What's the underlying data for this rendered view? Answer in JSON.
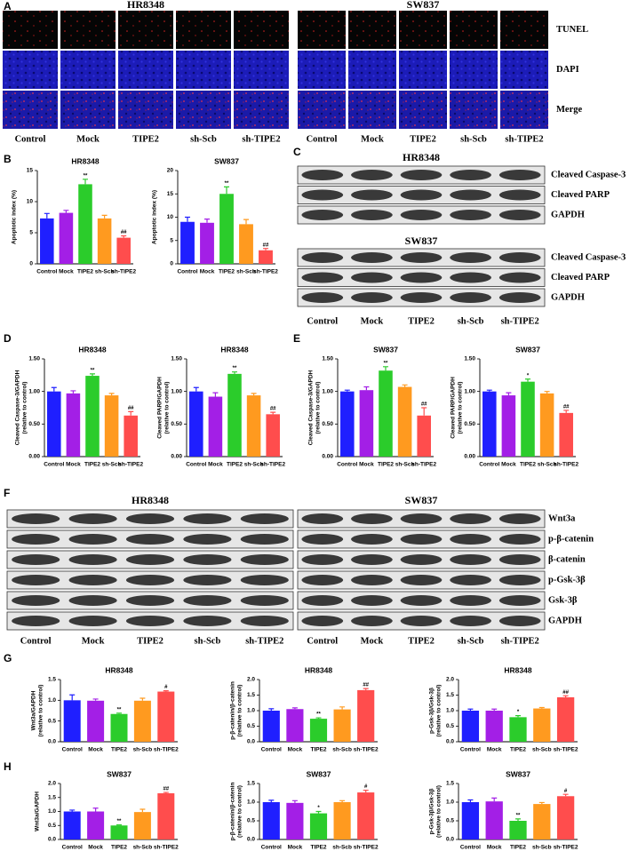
{
  "figure": {
    "panel_labels": [
      "A",
      "B",
      "C",
      "D",
      "E",
      "F",
      "G",
      "H"
    ],
    "microscopy": {
      "groups": [
        {
          "title": "HR8348",
          "columns": [
            "Control",
            "Mock",
            "TIPE2",
            "sh-Scb",
            "sh-TIPE2"
          ]
        },
        {
          "title": "SW837",
          "columns": [
            "Control",
            "Mock",
            "TIPE2",
            "sh-Scb",
            "sh-TIPE2"
          ]
        }
      ],
      "rows": [
        "TUNEL",
        "DAPI",
        "Merge"
      ]
    },
    "blot_c": {
      "groups": [
        {
          "title": "HR8348",
          "rows": [
            "Cleaved Caspase-3",
            "Cleaved PARP",
            "GAPDH"
          ]
        },
        {
          "title": "SW837",
          "rows": [
            "Cleaved Caspase-3",
            "Cleaved PARP",
            "GAPDH"
          ]
        }
      ],
      "columns": [
        "Control",
        "Mock",
        "TIPE2",
        "sh-Scb",
        "sh-TIPE2"
      ]
    },
    "blot_f": {
      "groups": [
        {
          "title": "HR8348",
          "columns": [
            "Control",
            "Mock",
            "TIPE2",
            "sh-Scb",
            "sh-TIPE2"
          ]
        },
        {
          "title": "SW837",
          "columns": [
            "Control",
            "Mock",
            "TIPE2",
            "sh-Scb",
            "sh-TIPE2"
          ]
        }
      ],
      "rows": [
        "Wnt3a",
        "p-β-catenin",
        "β-catenin",
        "p-Gsk-3β",
        "Gsk-3β",
        "GAPDH"
      ]
    }
  },
  "chart_data": [
    {
      "type": "bar",
      "title": "HR8348",
      "ylabel": [
        "Apoptotic index (%)"
      ],
      "categories": [
        "Control",
        "Mock",
        "TIPE2",
        "sh-Scb",
        "sh-TIPE2"
      ],
      "values": [
        7.3,
        8.2,
        12.8,
        7.3,
        4.2
      ],
      "errors": [
        0.8,
        0.4,
        0.8,
        0.5,
        0.3
      ],
      "annotations": [
        null,
        null,
        "**",
        null,
        "##"
      ],
      "colors": [
        "#1f1fff",
        "#a31fe6",
        "#2bcc2b",
        "#ff9a1f",
        "#ff4d4d"
      ],
      "ylim": [
        0,
        15
      ],
      "yticks": [
        0,
        5,
        10,
        15
      ]
    },
    {
      "type": "bar",
      "title": "SW837",
      "ylabel": [
        "Apoptotic index (%)"
      ],
      "categories": [
        "Control",
        "Mock",
        "TIPE2",
        "sh-Scb",
        "sh-TIPE2"
      ],
      "values": [
        9,
        8.8,
        15,
        8.5,
        2.9
      ],
      "errors": [
        1,
        0.8,
        1.5,
        1,
        0.4
      ],
      "annotations": [
        null,
        null,
        "**",
        null,
        "##"
      ],
      "colors": [
        "#1f1fff",
        "#a31fe6",
        "#2bcc2b",
        "#ff9a1f",
        "#ff4d4d"
      ],
      "ylim": [
        0,
        20
      ],
      "yticks": [
        0,
        5,
        10,
        15,
        20
      ]
    },
    {
      "type": "bar",
      "title": "HR8348",
      "ylabel": [
        "Cleaved Caspase-3/GAPDH",
        "(relative to control)"
      ],
      "categories": [
        "Control",
        "Mock",
        "TIPE2",
        "sh-Scb",
        "sh-TIPE2"
      ],
      "values": [
        1.0,
        0.97,
        1.24,
        0.94,
        0.63
      ],
      "errors": [
        0.06,
        0.04,
        0.03,
        0.03,
        0.06
      ],
      "annotations": [
        null,
        null,
        "**",
        null,
        "##"
      ],
      "colors": [
        "#1f1fff",
        "#a31fe6",
        "#2bcc2b",
        "#ff9a1f",
        "#ff4d4d"
      ],
      "ylim": [
        0,
        1.5
      ],
      "yticks": [
        {
          "value": 0,
          "label": "0.00"
        },
        {
          "value": 0.5,
          "label": "0.50"
        },
        {
          "value": 1,
          "label": "1.00"
        },
        {
          "value": 1.5,
          "label": "1.50"
        }
      ]
    },
    {
      "type": "bar",
      "title": "HR8348",
      "ylabel": [
        "Cleaved PARP/GAPDH",
        "(relative to control)"
      ],
      "categories": [
        "Control",
        "Mock",
        "TIPE2",
        "sh-Scb",
        "sh-TIPE2"
      ],
      "values": [
        1.0,
        0.92,
        1.27,
        0.94,
        0.65
      ],
      "errors": [
        0.06,
        0.06,
        0.03,
        0.03,
        0.03
      ],
      "annotations": [
        null,
        null,
        "**",
        null,
        "##"
      ],
      "colors": [
        "#1f1fff",
        "#a31fe6",
        "#2bcc2b",
        "#ff9a1f",
        "#ff4d4d"
      ],
      "ylim": [
        0,
        1.5
      ],
      "yticks": [
        {
          "value": 0,
          "label": "0.00"
        },
        {
          "value": 0.5,
          "label": "0.50"
        },
        {
          "value": 1,
          "label": "1.00"
        },
        {
          "value": 1.5,
          "label": "1.50"
        }
      ]
    },
    {
      "type": "bar",
      "title": "SW837",
      "ylabel": [
        "Cleaved Caspase-3/GAPDH",
        "(relative to control)"
      ],
      "categories": [
        "Control",
        "Mock",
        "TIPE2",
        "sh-Scb",
        "sh-TIPE2"
      ],
      "values": [
        1.0,
        1.02,
        1.32,
        1.07,
        0.63
      ],
      "errors": [
        0.02,
        0.05,
        0.06,
        0.03,
        0.12
      ],
      "annotations": [
        null,
        null,
        "**",
        null,
        "##"
      ],
      "colors": [
        "#1f1fff",
        "#a31fe6",
        "#2bcc2b",
        "#ff9a1f",
        "#ff4d4d"
      ],
      "ylim": [
        0,
        1.5
      ],
      "yticks": [
        {
          "value": 0,
          "label": "0.00"
        },
        {
          "value": 0.5,
          "label": "0.50"
        },
        {
          "value": 1,
          "label": "1.00"
        },
        {
          "value": 1.5,
          "label": "1.50"
        }
      ]
    },
    {
      "type": "bar",
      "title": "SW837",
      "ylabel": [
        "Cleaved PARP/GAPDH",
        "(relative to control)"
      ],
      "categories": [
        "Control",
        "Mock",
        "TIPE2",
        "sh-Scb",
        "sh-TIPE2"
      ],
      "values": [
        1.0,
        0.94,
        1.15,
        0.97,
        0.67
      ],
      "errors": [
        0.02,
        0.04,
        0.04,
        0.03,
        0.04
      ],
      "annotations": [
        null,
        null,
        "*",
        null,
        "##"
      ],
      "colors": [
        "#1f1fff",
        "#a31fe6",
        "#2bcc2b",
        "#ff9a1f",
        "#ff4d4d"
      ],
      "ylim": [
        0,
        1.5
      ],
      "yticks": [
        {
          "value": 0,
          "label": "0.00"
        },
        {
          "value": 0.5,
          "label": "0.50"
        },
        {
          "value": 1,
          "label": "1.00"
        },
        {
          "value": 1.5,
          "label": "1.50"
        }
      ]
    },
    {
      "type": "bar",
      "title": "HR8348",
      "ylabel": [
        "Wnt3a/GAPDH",
        "(relative to control)"
      ],
      "categories": [
        "Control",
        "Mock",
        "TIPE2",
        "sh-Scb",
        "sh-TIPE2"
      ],
      "values": [
        1.0,
        0.99,
        0.67,
        0.99,
        1.21
      ],
      "errors": [
        0.13,
        0.04,
        0.02,
        0.06,
        0.02
      ],
      "annotations": [
        null,
        null,
        "**",
        null,
        "#"
      ],
      "colors": [
        "#1f1fff",
        "#a31fe6",
        "#2bcc2b",
        "#ff9a1f",
        "#ff4d4d"
      ],
      "ylim": [
        0,
        1.5
      ],
      "yticks": [
        {
          "value": 0,
          "label": "0.0"
        },
        0.5,
        {
          "value": 1,
          "label": "1.0"
        },
        1.5
      ]
    },
    {
      "type": "bar",
      "title": "HR8348",
      "ylabel": [
        "p-β-catenin/β-catenin",
        "(relative to control)"
      ],
      "categories": [
        "Control",
        "Mock",
        "TIPE2",
        "sh-Scb",
        "sh-TIPE2"
      ],
      "values": [
        1.0,
        1.05,
        0.74,
        1.04,
        1.66
      ],
      "errors": [
        0.06,
        0.04,
        0.03,
        0.08,
        0.05
      ],
      "annotations": [
        null,
        null,
        "**",
        null,
        "##"
      ],
      "colors": [
        "#1f1fff",
        "#a31fe6",
        "#2bcc2b",
        "#ff9a1f",
        "#ff4d4d"
      ],
      "ylim": [
        0,
        2
      ],
      "yticks": [
        {
          "value": 0,
          "label": "0.0"
        },
        0.5,
        {
          "value": 1,
          "label": "1.0"
        },
        1.5,
        {
          "value": 2,
          "label": "2.0"
        }
      ]
    },
    {
      "type": "bar",
      "title": "HR8348",
      "ylabel": [
        "p-Gsk-3β/Gsk-3β",
        "(relative to control)"
      ],
      "categories": [
        "Control",
        "Mock",
        "TIPE2",
        "sh-Scb",
        "sh-TIPE2"
      ],
      "values": [
        1.0,
        1.0,
        0.79,
        1.07,
        1.43
      ],
      "errors": [
        0.05,
        0.05,
        0.05,
        0.03,
        0.05
      ],
      "annotations": [
        null,
        null,
        "*",
        null,
        "##"
      ],
      "colors": [
        "#1f1fff",
        "#a31fe6",
        "#2bcc2b",
        "#ff9a1f",
        "#ff4d4d"
      ],
      "ylim": [
        0,
        2
      ],
      "yticks": [
        {
          "value": 0,
          "label": "0.0"
        },
        0.5,
        {
          "value": 1,
          "label": "1.0"
        },
        1.5,
        {
          "value": 2,
          "label": "2.0"
        }
      ]
    },
    {
      "type": "bar",
      "title": "SW837",
      "ylabel": [
        "Wnt3a/GAPDH"
      ],
      "categories": [
        "Control",
        "Mock",
        "TIPE2",
        "sh-Scb",
        "sh-TIPE2"
      ],
      "values": [
        1.0,
        1.0,
        0.5,
        0.98,
        1.65
      ],
      "errors": [
        0.05,
        0.12,
        0.02,
        0.1,
        0.03
      ],
      "annotations": [
        null,
        null,
        "**",
        null,
        "##"
      ],
      "colors": [
        "#1f1fff",
        "#a31fe6",
        "#2bcc2b",
        "#ff9a1f",
        "#ff4d4d"
      ],
      "ylim": [
        0,
        2
      ],
      "yticks": [
        {
          "value": 0,
          "label": "0.0"
        },
        0.5,
        {
          "value": 1,
          "label": "1.0"
        },
        1.5,
        {
          "value": 2,
          "label": "2.0"
        }
      ]
    },
    {
      "type": "bar",
      "title": "SW837",
      "ylabel": [
        "p-β-catenin/β-catenin",
        "(relative to control)"
      ],
      "categories": [
        "Control",
        "Mock",
        "TIPE2",
        "sh-Scb",
        "sh-TIPE2"
      ],
      "values": [
        1.0,
        0.98,
        0.7,
        1.0,
        1.26
      ],
      "errors": [
        0.05,
        0.06,
        0.05,
        0.04,
        0.06
      ],
      "annotations": [
        null,
        null,
        "*",
        null,
        "#"
      ],
      "colors": [
        "#1f1fff",
        "#a31fe6",
        "#2bcc2b",
        "#ff9a1f",
        "#ff4d4d"
      ],
      "ylim": [
        0,
        1.5
      ],
      "yticks": [
        {
          "value": 0,
          "label": "0.0"
        },
        0.5,
        {
          "value": 1,
          "label": "1.0"
        },
        1.5
      ]
    },
    {
      "type": "bar",
      "title": "SW837",
      "ylabel": [
        "p-Gsk-3β/Gsk-3β",
        "(relative to control)"
      ],
      "categories": [
        "Control",
        "Mock",
        "TIPE2",
        "sh-Scb",
        "sh-TIPE2"
      ],
      "values": [
        1.0,
        1.02,
        0.5,
        0.95,
        1.16
      ],
      "errors": [
        0.06,
        0.09,
        0.05,
        0.04,
        0.05
      ],
      "annotations": [
        null,
        null,
        "**",
        null,
        "#"
      ],
      "colors": [
        "#1f1fff",
        "#a31fe6",
        "#2bcc2b",
        "#ff9a1f",
        "#ff4d4d"
      ],
      "ylim": [
        0,
        1.5
      ],
      "yticks": [
        {
          "value": 0,
          "label": "0.0"
        },
        0.5,
        {
          "value": 1,
          "label": "1.0"
        },
        1.5
      ]
    }
  ]
}
